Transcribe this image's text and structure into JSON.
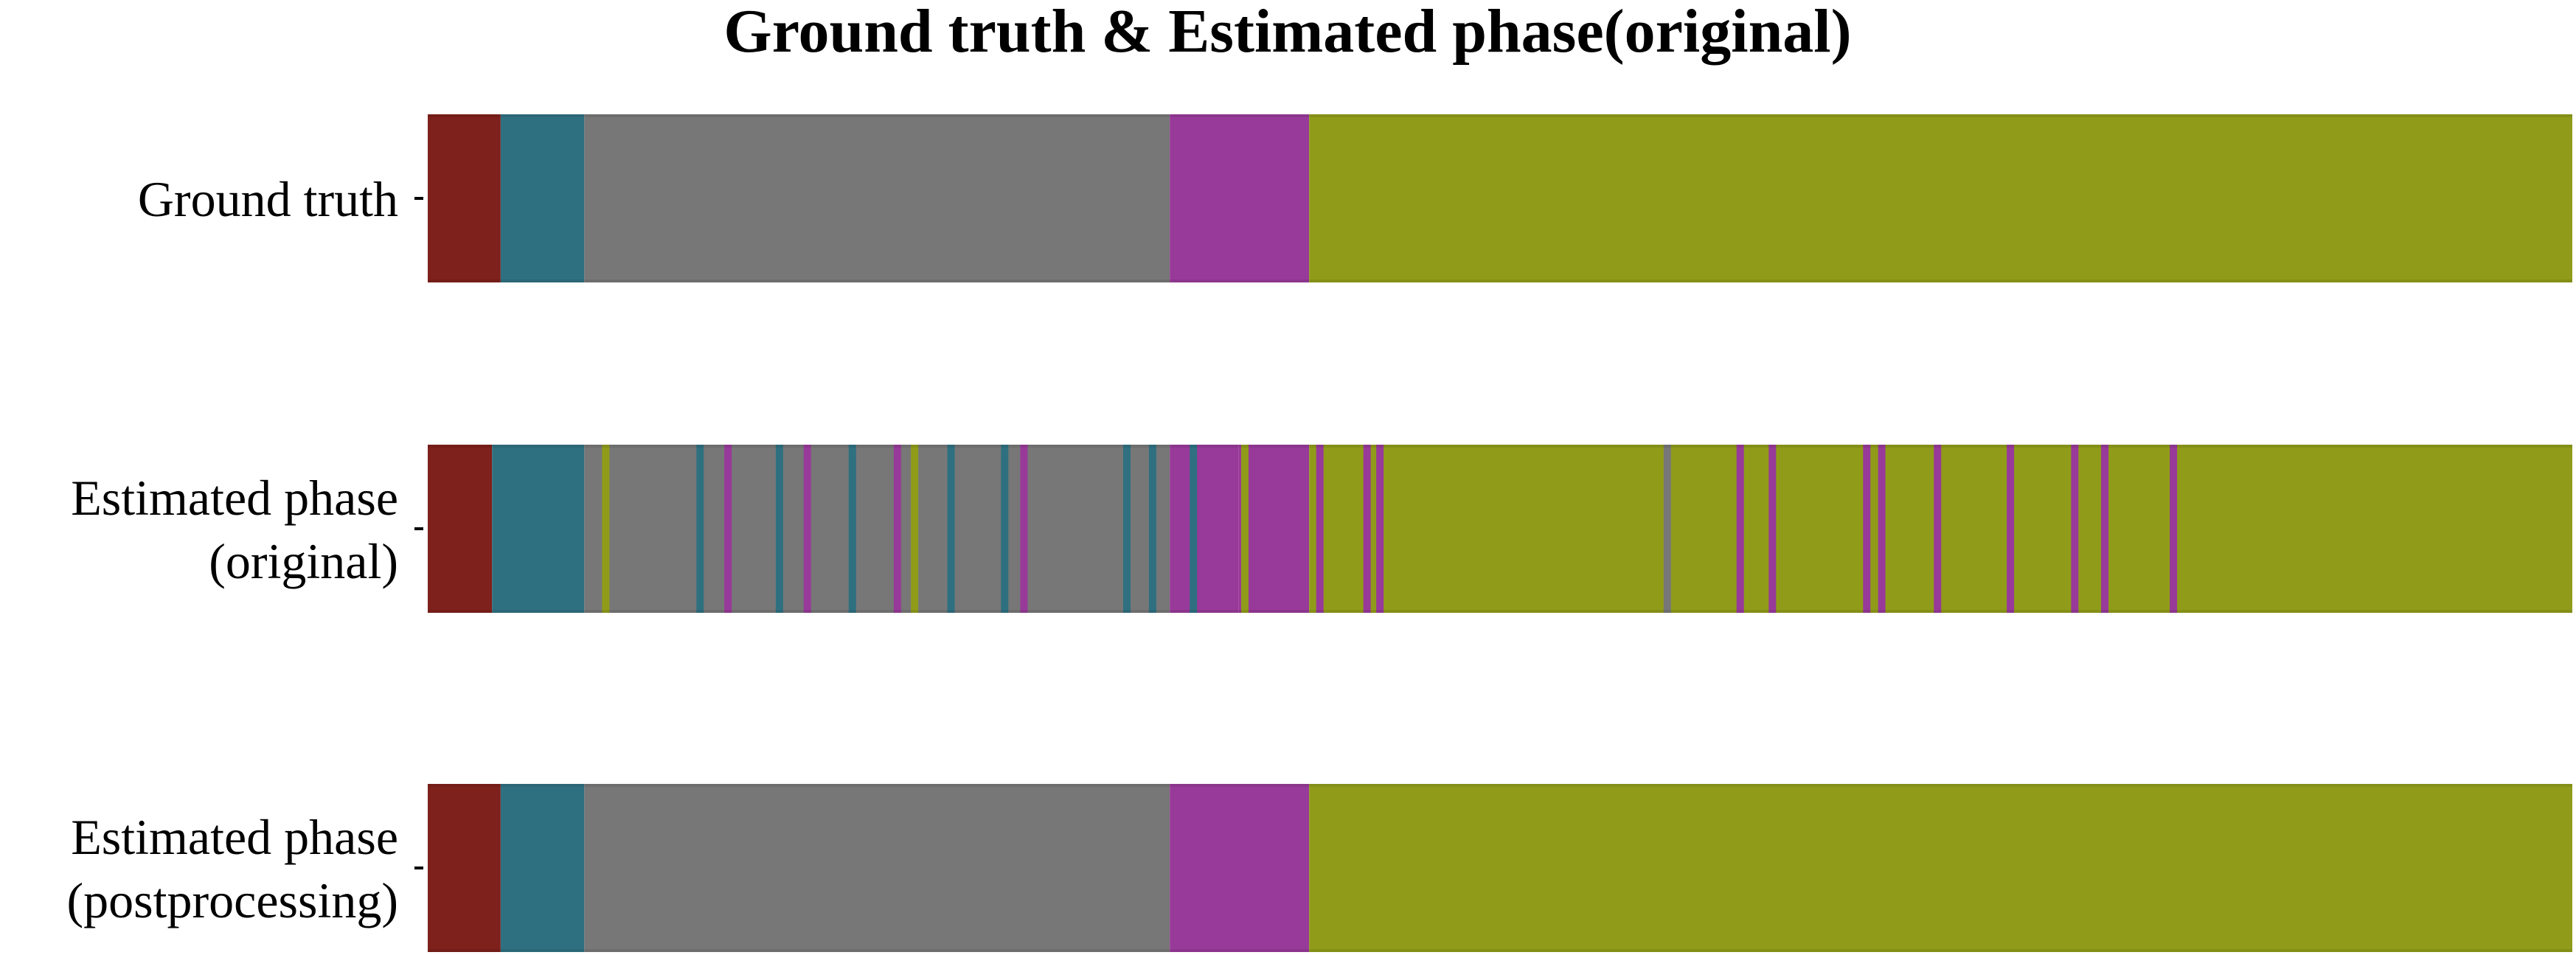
{
  "chart_data": {
    "type": "phase_timeline",
    "title": "Ground truth & Estimated phase(original)",
    "xlim": [
      0,
      1000
    ],
    "colors": {
      "P1": "#7e201b",
      "P2": "#2f7080",
      "P3": "#777777",
      "P4": "#983a99",
      "P5": "#909c19"
    },
    "rows": [
      {
        "label": [
          "Ground truth"
        ],
        "segments": [
          {
            "start": 0,
            "end": 34,
            "phase": "P1"
          },
          {
            "start": 34,
            "end": 73,
            "phase": "P2"
          },
          {
            "start": 73,
            "end": 346,
            "phase": "P3"
          },
          {
            "start": 346,
            "end": 411,
            "phase": "P4"
          },
          {
            "start": 411,
            "end": 1000,
            "phase": "P5"
          }
        ]
      },
      {
        "label": [
          "Estimated phase",
          "(original)"
        ],
        "segments": [
          {
            "start": 0,
            "end": 30,
            "phase": "P1"
          },
          {
            "start": 30,
            "end": 73,
            "phase": "P2"
          },
          {
            "start": 73,
            "end": 346,
            "phase": "P3"
          },
          {
            "start": 346,
            "end": 378,
            "phase": "P4"
          },
          {
            "start": 378,
            "end": 411,
            "phase": "P4"
          },
          {
            "start": 411,
            "end": 1000,
            "phase": "P5"
          }
        ],
        "stripes": [
          {
            "at": 83,
            "phase": "P5"
          },
          {
            "at": 127,
            "phase": "P2"
          },
          {
            "at": 140,
            "phase": "P4"
          },
          {
            "at": 164,
            "phase": "P2"
          },
          {
            "at": 177,
            "phase": "P4"
          },
          {
            "at": 198,
            "phase": "P2"
          },
          {
            "at": 219,
            "phase": "P4"
          },
          {
            "at": 227,
            "phase": "P5"
          },
          {
            "at": 244,
            "phase": "P2"
          },
          {
            "at": 269,
            "phase": "P2"
          },
          {
            "at": 278,
            "phase": "P4"
          },
          {
            "at": 326,
            "phase": "P2"
          },
          {
            "at": 338,
            "phase": "P2"
          },
          {
            "at": 357,
            "phase": "P2"
          },
          {
            "at": 381,
            "phase": "P5"
          },
          {
            "at": 416,
            "phase": "P4"
          },
          {
            "at": 438,
            "phase": "P4"
          },
          {
            "at": 444,
            "phase": "P4"
          },
          {
            "at": 578,
            "phase": "P3"
          },
          {
            "at": 612,
            "phase": "P4"
          },
          {
            "at": 627,
            "phase": "P4"
          },
          {
            "at": 671,
            "phase": "P4"
          },
          {
            "at": 678,
            "phase": "P4"
          },
          {
            "at": 704,
            "phase": "P4"
          },
          {
            "at": 738,
            "phase": "P4"
          },
          {
            "at": 768,
            "phase": "P4"
          },
          {
            "at": 782,
            "phase": "P4"
          },
          {
            "at": 814,
            "phase": "P4"
          }
        ]
      },
      {
        "label": [
          "Estimated phase",
          "(postprocessing)"
        ],
        "segments": [
          {
            "start": 0,
            "end": 34,
            "phase": "P1"
          },
          {
            "start": 34,
            "end": 73,
            "phase": "P2"
          },
          {
            "start": 73,
            "end": 346,
            "phase": "P3"
          },
          {
            "start": 346,
            "end": 411,
            "phase": "P4"
          },
          {
            "start": 411,
            "end": 1000,
            "phase": "P5"
          }
        ]
      }
    ]
  }
}
